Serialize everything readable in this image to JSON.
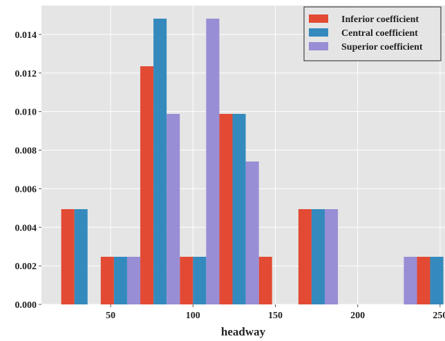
{
  "chart_data": {
    "type": "bar",
    "xlabel": "headway",
    "ylabel": "",
    "xlim": [
      8,
      253
    ],
    "ylim": [
      0,
      0.0155
    ],
    "grid": true,
    "legend_position": "top-right",
    "x_ticks": [
      50,
      100,
      150,
      200,
      250
    ],
    "x_tick_labels": [
      "50",
      "100",
      "150",
      "200",
      "250"
    ],
    "y_ticks": [
      0,
      0.002,
      0.004,
      0.006,
      0.008,
      0.01,
      0.012,
      0.014
    ],
    "y_tick_labels": [
      "0.000",
      "0.002",
      "0.004",
      "0.006",
      "0.008",
      "0.010",
      "0.012",
      "0.014"
    ],
    "bin_starts": [
      20,
      44,
      68,
      92,
      116,
      140,
      164,
      188,
      212,
      236
    ],
    "bin_width": 24,
    "series": [
      {
        "name": "Inferior coefficient",
        "color": "#E24A33",
        "values": [
          0.00494,
          0.00247,
          0.01235,
          0.00247,
          0.00988,
          0.00247,
          0.00494,
          0,
          0,
          0.00247
        ]
      },
      {
        "name": "Central coefficient",
        "color": "#348ABD",
        "values": [
          0.00494,
          0.00247,
          0.01482,
          0.00247,
          0.00988,
          0,
          0.00494,
          0,
          0,
          0.00247
        ]
      },
      {
        "name": "Superior coefficient",
        "color": "#988ED5",
        "values": [
          0,
          0.00247,
          0.00988,
          0.01482,
          0.00741,
          0,
          0.00494,
          0,
          0.00247,
          0
        ]
      }
    ]
  }
}
